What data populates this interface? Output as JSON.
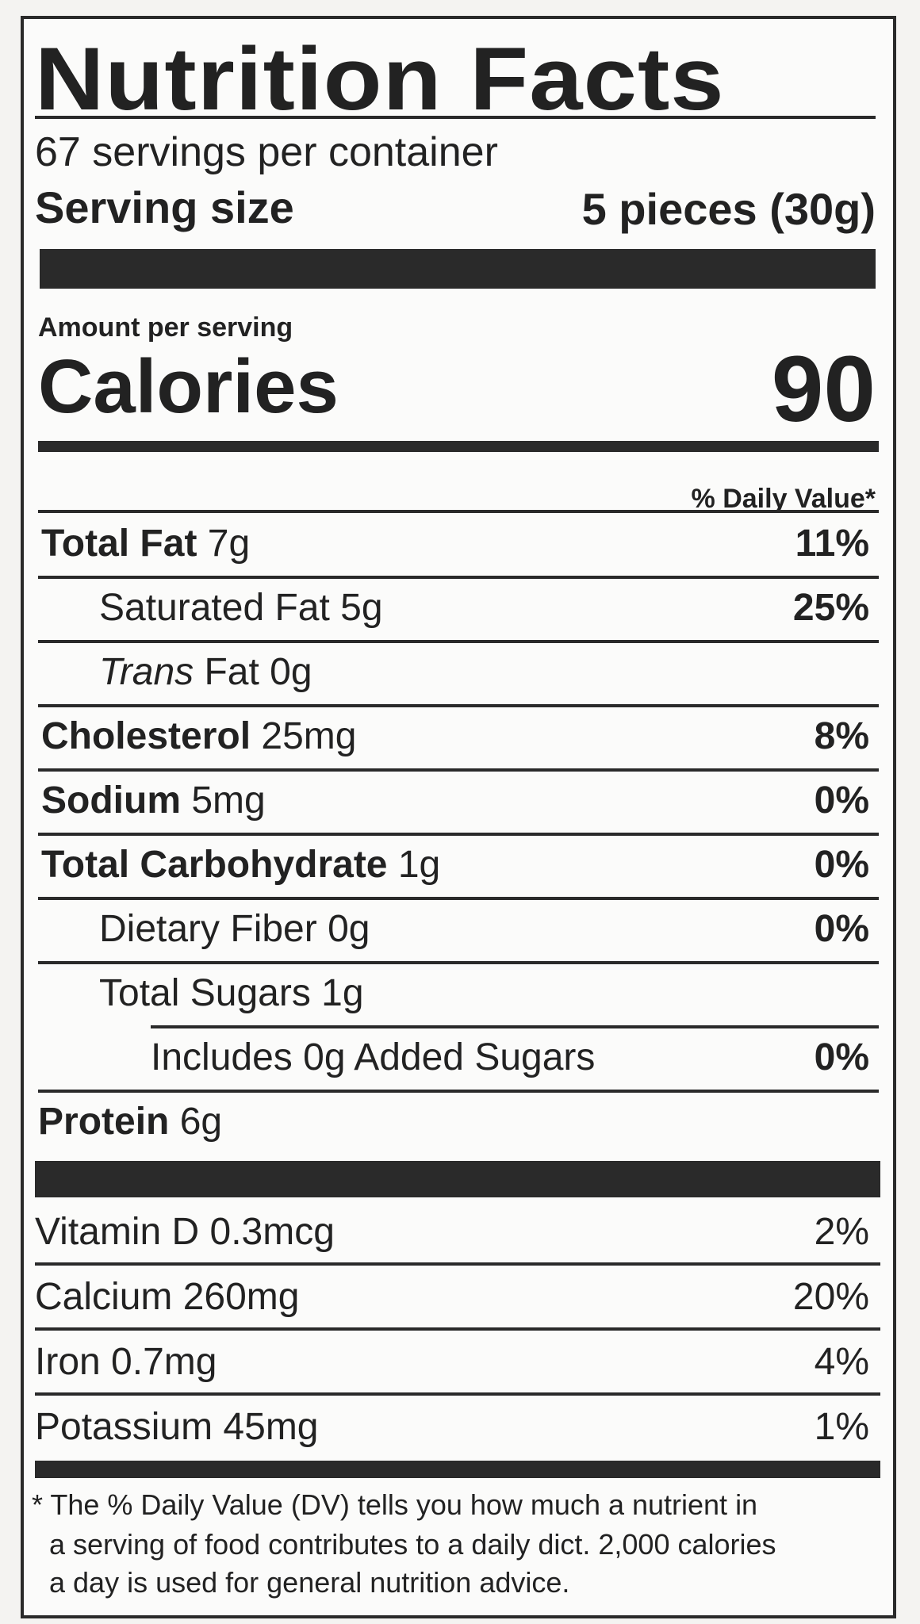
{
  "title": "Nutrition Facts",
  "servings": "67 servings per container",
  "serving_size": {
    "label": "Serving size",
    "value": "5 pieces (30g)"
  },
  "amount_per_serving": "Amount per serving",
  "calories": {
    "label": "Calories",
    "value": "90"
  },
  "daily_value_header": "% Daily Value*",
  "nutrients": [
    {
      "name": "Total Fat",
      "amount": "7g",
      "dv": "11%"
    },
    {
      "name": "Saturated Fat 5g",
      "dv": "25%"
    },
    {
      "name_italic": "Trans",
      "name": "Fat 0g"
    },
    {
      "name": "Cholesterol",
      "amount": "25mg",
      "dv": "8%"
    },
    {
      "name": "Sodium",
      "amount": "5mg",
      "dv": "0%"
    },
    {
      "name": "Total Carbohydrate",
      "amount": "1g",
      "dv": "0%"
    },
    {
      "name": "Dietary Fiber 0g",
      "dv": "0%"
    },
    {
      "name": "Total Sugars 1g"
    },
    {
      "name": "Includes 0g Added Sugars",
      "dv": "0%"
    },
    {
      "name": "Protein",
      "amount": "6g"
    }
  ],
  "vitamins": [
    {
      "name": "Vitamin D 0.3mcg",
      "dv": "2%"
    },
    {
      "name": "Calcium 260mg",
      "dv": "20%"
    },
    {
      "name": "Iron 0.7mg",
      "dv": "4%"
    },
    {
      "name": "Potassium 45mg",
      "dv": "1%"
    }
  ],
  "footnote": [
    "* The % Daily Value (DV) tells you how much a nutrient in",
    "a serving of food contributes to a daily dict. 2,000 calories",
    "a day is used for general nutrition advice."
  ]
}
